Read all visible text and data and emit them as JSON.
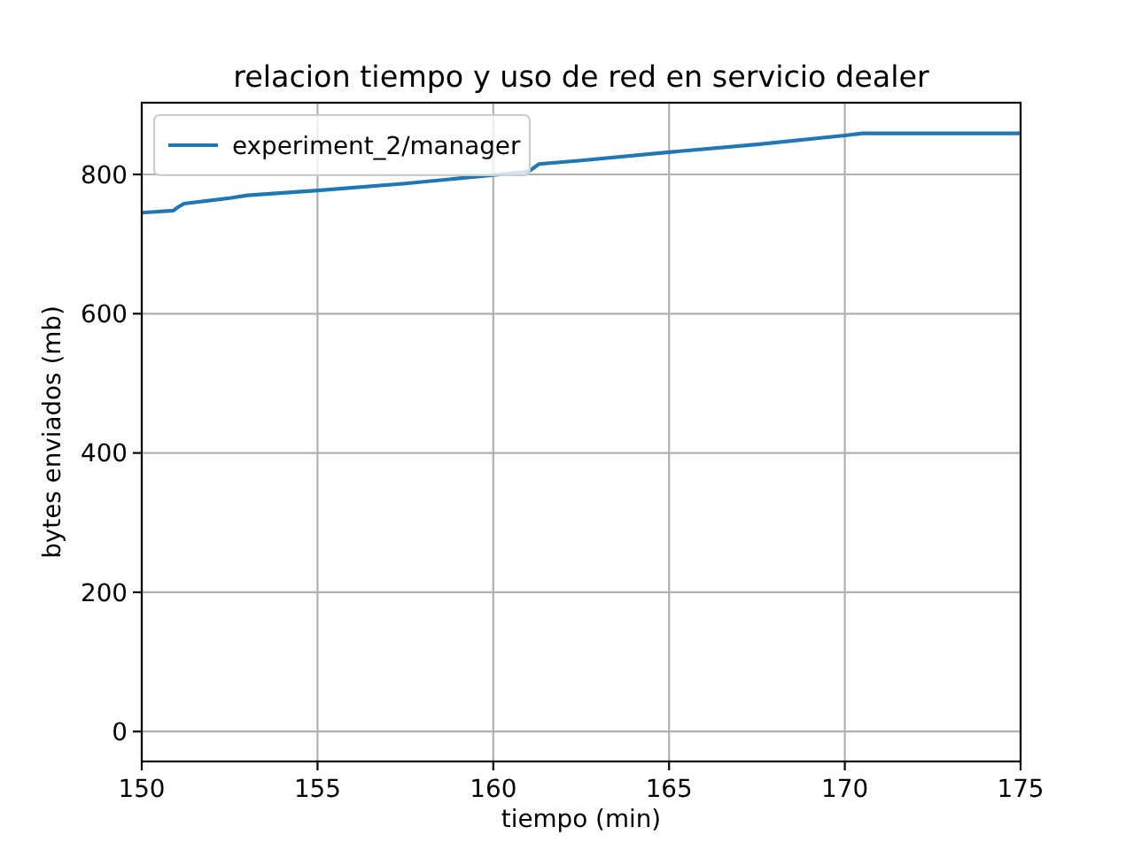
{
  "chart_data": {
    "type": "line",
    "title": "relacion tiempo y uso de red en servicio dealer",
    "xlabel": "tiempo (min)",
    "ylabel": "bytes enviados (mb)",
    "x": [
      150,
      150.9,
      151.0,
      151.2,
      152.5,
      153,
      155,
      157.5,
      160,
      161,
      161.3,
      162.5,
      165,
      167.5,
      170,
      170.5,
      175
    ],
    "series": [
      {
        "name": "experiment_2/manager",
        "color": "#1f77b4",
        "values": [
          745,
          748,
          752,
          758,
          766,
          770,
          777,
          787,
          799,
          804,
          815,
          820,
          832,
          843,
          856,
          859,
          859
        ]
      }
    ],
    "xlim": [
      150,
      175
    ],
    "ylim": [
      -43,
      903
    ],
    "xticks": [
      150,
      155,
      160,
      165,
      170,
      175
    ],
    "yticks": [
      0,
      200,
      400,
      600,
      800
    ],
    "grid": true,
    "legend": "top left"
  }
}
